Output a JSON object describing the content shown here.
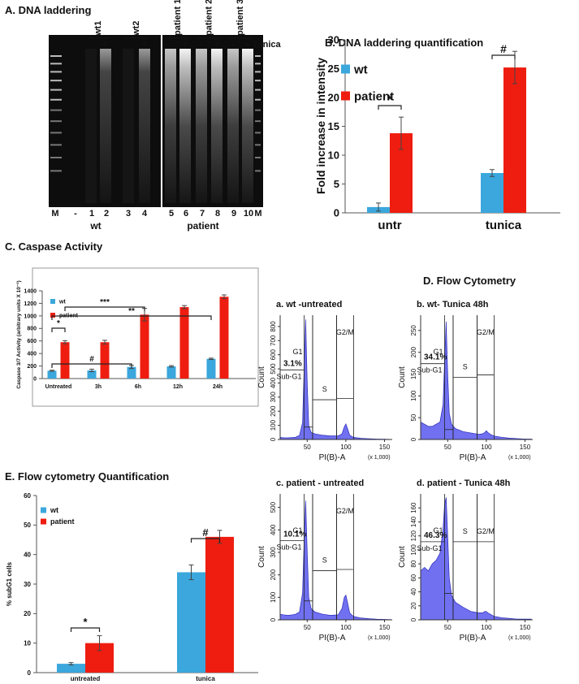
{
  "gel": {
    "title": "A. DNA laddering",
    "groups": [
      {
        "label": "wt1",
        "signs": [
          "-",
          "+"
        ]
      },
      {
        "label": "wt2",
        "signs": [
          "-",
          "+"
        ]
      },
      {
        "label": "patient 1",
        "signs": [
          "-",
          "+"
        ]
      },
      {
        "label": "patient 2",
        "signs": [
          "-",
          "+"
        ]
      },
      {
        "label": "patient 3",
        "signs": [
          "-",
          "+"
        ]
      }
    ],
    "treatment": "Tunica",
    "lanes": [
      "M",
      "-",
      "1",
      "2",
      "3",
      "4",
      "5",
      "6",
      "7",
      "8",
      "9",
      "10",
      "M"
    ],
    "group_labels": [
      "wt",
      "patient"
    ]
  },
  "flow_title": "D. Flow Cytometry",
  "chart_data": [
    {
      "type": "bar",
      "title": "B. DNA laddering quantification",
      "ylabel": "Fold increase in intensity",
      "categories": [
        "untr",
        "tunica"
      ],
      "series": [
        {
          "name": "wt",
          "color": "#3ba7dc",
          "values": [
            1,
            6.9
          ],
          "errors": [
            0.7,
            0.6
          ]
        },
        {
          "name": "patient",
          "color": "#ee1d10",
          "values": [
            13.8,
            25.2
          ],
          "errors": [
            2.8,
            2.8
          ]
        }
      ],
      "ylim": [
        0,
        30
      ],
      "yticks": [
        0,
        5,
        10,
        15,
        20,
        25,
        30
      ],
      "annotations": [
        "*",
        "#"
      ]
    },
    {
      "type": "bar",
      "title": "C. Caspase Activity",
      "ylabel": "Caspase 3/7 Activity (arbitrary units X 10⁻³)",
      "categories": [
        "Untreated",
        "3h",
        "6h",
        "12h",
        "24h"
      ],
      "series": [
        {
          "name": "wt",
          "color": "#3ba7dc",
          "values": [
            125,
            130,
            185,
            195,
            315
          ],
          "errors": [
            8,
            20,
            25,
            12,
            10
          ]
        },
        {
          "name": "patient",
          "color": "#ee1d10",
          "values": [
            580,
            580,
            1020,
            1140,
            1305
          ],
          "errors": [
            25,
            30,
            100,
            25,
            30
          ]
        }
      ],
      "ylim": [
        0,
        1400
      ],
      "yticks": [
        0,
        200,
        400,
        600,
        800,
        1000,
        1200,
        1400
      ],
      "annotations": [
        "***",
        "**",
        "*",
        "#"
      ]
    },
    {
      "type": "area",
      "title": "a. wt -untreated",
      "xlabel": "PI(B)-A",
      "xunit": "(x 1,000)",
      "ylabel": "Count",
      "color": "#7070f0",
      "x": [
        15,
        20,
        25,
        30,
        35,
        40,
        44,
        46,
        48,
        50,
        52,
        55,
        60,
        70,
        80,
        90,
        95,
        98,
        100,
        102,
        105,
        110,
        120,
        130,
        140,
        150,
        158
      ],
      "values": [
        15,
        12,
        12,
        14,
        16,
        28,
        120,
        500,
        850,
        400,
        100,
        50,
        40,
        30,
        25,
        25,
        40,
        90,
        110,
        80,
        30,
        15,
        8,
        5,
        3,
        2,
        1
      ],
      "xlim": [
        15,
        160
      ],
      "xticks": [
        50,
        100,
        150
      ],
      "ylim": [
        0,
        880
      ],
      "yticks": [
        0,
        100,
        200,
        300,
        400,
        500,
        600,
        700,
        800
      ],
      "gates": [
        {
          "name": "Sub-G1",
          "range": [
            15,
            46
          ]
        },
        {
          "name": "G1",
          "range": [
            46,
            57
          ]
        },
        {
          "name": "S",
          "range": [
            57,
            88
          ]
        },
        {
          "name": "G2/M",
          "range": [
            88,
            110
          ]
        }
      ],
      "sub_g1_label": "3.1%"
    },
    {
      "type": "area",
      "title": "b. wt- Tunica 48h",
      "xlabel": "PI(B)-A",
      "xunit": "(x 1,000)",
      "ylabel": "Count",
      "color": "#7070f0",
      "x": [
        15,
        20,
        25,
        30,
        35,
        40,
        44,
        46,
        48,
        50,
        52,
        55,
        60,
        70,
        80,
        90,
        95,
        98,
        100,
        102,
        105,
        110,
        120,
        130,
        140,
        150,
        158
      ],
      "values": [
        40,
        35,
        30,
        30,
        35,
        40,
        80,
        180,
        270,
        150,
        60,
        35,
        25,
        18,
        15,
        12,
        13,
        16,
        20,
        16,
        12,
        8,
        5,
        3,
        2,
        1,
        1
      ],
      "xlim": [
        15,
        160
      ],
      "xticks": [
        50,
        100,
        150
      ],
      "ylim": [
        0,
        285
      ],
      "yticks": [
        0,
        50,
        100,
        150,
        200,
        250
      ],
      "gates": [
        {
          "name": "Sub-G1",
          "range": [
            15,
            46
          ]
        },
        {
          "name": "G1",
          "range": [
            46,
            57
          ]
        },
        {
          "name": "S",
          "range": [
            57,
            88
          ]
        },
        {
          "name": "G2/M",
          "range": [
            88,
            110
          ]
        }
      ],
      "sub_g1_label": "34.1%"
    },
    {
      "type": "area",
      "title": "c. patient - untreated",
      "xlabel": "PI(B)-A",
      "xunit": "(x 1,000)",
      "ylabel": "Count",
      "color": "#7070f0",
      "x": [
        15,
        20,
        25,
        30,
        35,
        40,
        44,
        46,
        48,
        50,
        52,
        55,
        60,
        70,
        80,
        90,
        95,
        98,
        100,
        102,
        105,
        110,
        120,
        130,
        140,
        150,
        158
      ],
      "values": [
        25,
        22,
        20,
        22,
        25,
        35,
        120,
        350,
        530,
        300,
        100,
        50,
        35,
        25,
        20,
        22,
        50,
        100,
        110,
        80,
        30,
        15,
        8,
        5,
        3,
        2,
        1
      ],
      "xlim": [
        15,
        160
      ],
      "xticks": [
        50,
        100,
        150
      ],
      "ylim": [
        0,
        560
      ],
      "yticks": [
        0,
        100,
        200,
        300,
        400,
        500
      ],
      "gates": [
        {
          "name": "Sub-G1",
          "range": [
            15,
            46
          ]
        },
        {
          "name": "G1",
          "range": [
            46,
            57
          ]
        },
        {
          "name": "S",
          "range": [
            57,
            88
          ]
        },
        {
          "name": "G2/M",
          "range": [
            88,
            110
          ]
        }
      ],
      "sub_g1_label": "10.1%"
    },
    {
      "type": "area",
      "title": "d.   patient - Tunica 48h",
      "xlabel": "PI(B)-A",
      "xunit": "(x 1,000)",
      "ylabel": "Count",
      "color": "#7070f0",
      "x": [
        15,
        20,
        25,
        30,
        35,
        40,
        44,
        46,
        48,
        50,
        52,
        55,
        60,
        70,
        80,
        90,
        95,
        98,
        100,
        102,
        105,
        110,
        120,
        130,
        140,
        150,
        158
      ],
      "values": [
        70,
        75,
        70,
        80,
        85,
        95,
        130,
        165,
        175,
        120,
        60,
        35,
        25,
        18,
        12,
        10,
        10,
        12,
        12,
        10,
        8,
        5,
        3,
        2,
        1,
        1,
        1
      ],
      "xlim": [
        15,
        160
      ],
      "xticks": [
        50,
        100,
        150
      ],
      "ylim": [
        0,
        180
      ],
      "yticks": [
        0,
        20,
        40,
        60,
        80,
        100,
        120,
        140,
        160
      ],
      "gates": [
        {
          "name": "Sub-G1",
          "range": [
            15,
            46
          ]
        },
        {
          "name": "G1",
          "range": [
            46,
            57
          ]
        },
        {
          "name": "S",
          "range": [
            57,
            88
          ]
        },
        {
          "name": "G2/M",
          "range": [
            88,
            110
          ]
        }
      ],
      "sub_g1_label": "46.3%"
    },
    {
      "type": "bar",
      "title": "E. Flow cytometry Quantification",
      "ylabel": "% subG1 cells",
      "categories": [
        "untreated",
        "tunica"
      ],
      "series": [
        {
          "name": "wt",
          "color": "#3ba7dc",
          "values": [
            3,
            34
          ],
          "errors": [
            0.4,
            2.5
          ]
        },
        {
          "name": "patient",
          "color": "#ee1d10",
          "values": [
            10,
            46
          ],
          "errors": [
            2.5,
            2.2
          ]
        }
      ],
      "ylim": [
        0,
        60
      ],
      "yticks": [
        0,
        10,
        20,
        30,
        40,
        50,
        60
      ],
      "annotations": [
        "*",
        "#"
      ]
    }
  ]
}
